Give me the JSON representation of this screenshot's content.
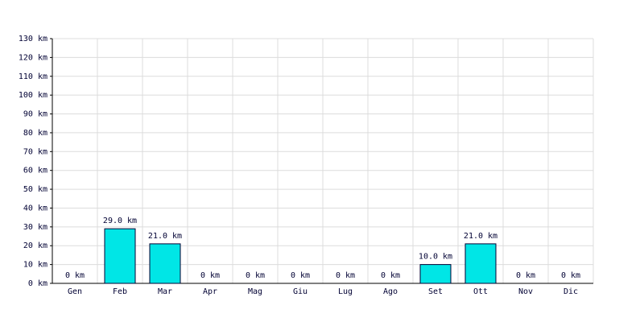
{
  "chart_data": {
    "type": "bar",
    "categories": [
      "Gen",
      "Feb",
      "Mar",
      "Apr",
      "Mag",
      "Giu",
      "Lug",
      "Ago",
      "Set",
      "Ott",
      "Nov",
      "Dic"
    ],
    "values": [
      0,
      29,
      21,
      0,
      0,
      0,
      0,
      0,
      10,
      21,
      0,
      0
    ],
    "value_labels": [
      "0 km",
      "29.0 km",
      "21.0 km",
      "0 km",
      "0 km",
      "0 km",
      "0 km",
      "0 km",
      "10.0 km",
      "21.0 km",
      "0 km",
      "0 km"
    ],
    "color": "#00e6e6",
    "ylim": [
      0,
      130
    ],
    "yticks": [
      {
        "value": 0,
        "label": "0 km"
      },
      {
        "value": 10,
        "label": "10 km"
      },
      {
        "value": 20,
        "label": "20 km"
      },
      {
        "value": 30,
        "label": "30 km"
      },
      {
        "value": 40,
        "label": "40 km"
      },
      {
        "value": 50,
        "label": "50 km"
      },
      {
        "value": 60,
        "label": "60 km"
      },
      {
        "value": 70,
        "label": "70 km"
      },
      {
        "value": 80,
        "label": "80 km"
      },
      {
        "value": 90,
        "label": "90 km"
      },
      {
        "value": 100,
        "label": "100 km"
      },
      {
        "value": 110,
        "label": "110 km"
      },
      {
        "value": 120,
        "label": "120 km"
      },
      {
        "value": 130,
        "label": "130 km"
      }
    ],
    "grid": true
  }
}
